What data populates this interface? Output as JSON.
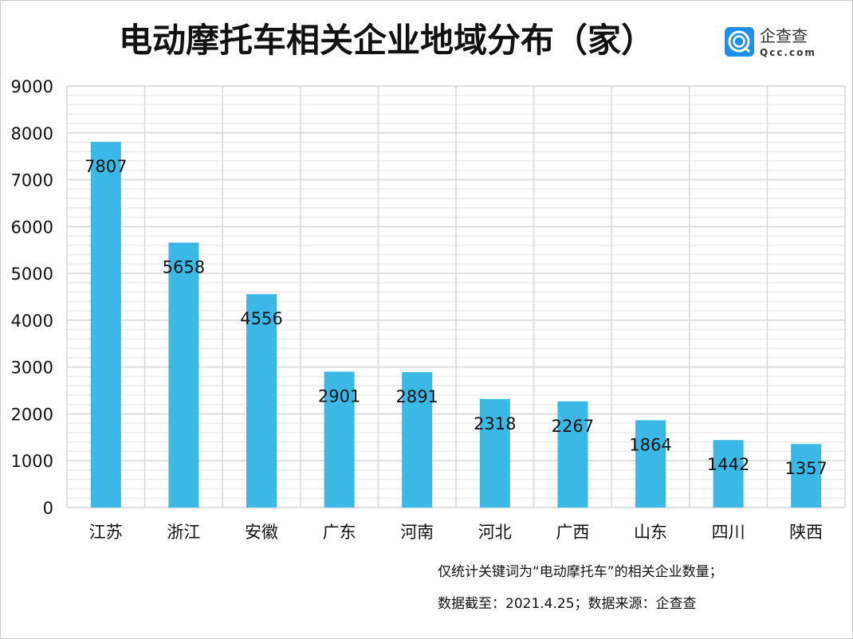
{
  "header": {
    "title": "电动摩托车相关企业地域分布（家）"
  },
  "logo": {
    "text_cn": "企查查",
    "text_en": "Qcc.com"
  },
  "notes": [
    "仅统计关键词为“电动摩托车”的相关企业数量；",
    "数据截至：2021.4.25；数据来源：企查查"
  ],
  "chart_data": {
    "type": "bar",
    "title": "电动摩托车相关企业地域分布（家）",
    "categories": [
      "江苏",
      "浙江",
      "安徽",
      "广东",
      "河南",
      "河北",
      "广西",
      "山东",
      "四川",
      "陕西"
    ],
    "values": [
      7807,
      5658,
      4556,
      2901,
      2891,
      2318,
      2267,
      1864,
      1442,
      1357
    ],
    "ylim": [
      0,
      9000
    ],
    "yticks": [
      0,
      1000,
      2000,
      3000,
      4000,
      5000,
      6000,
      7000,
      8000,
      9000
    ],
    "grid": true,
    "bar_color": "#3bb8e6",
    "data_labels": true,
    "legend": "none"
  }
}
